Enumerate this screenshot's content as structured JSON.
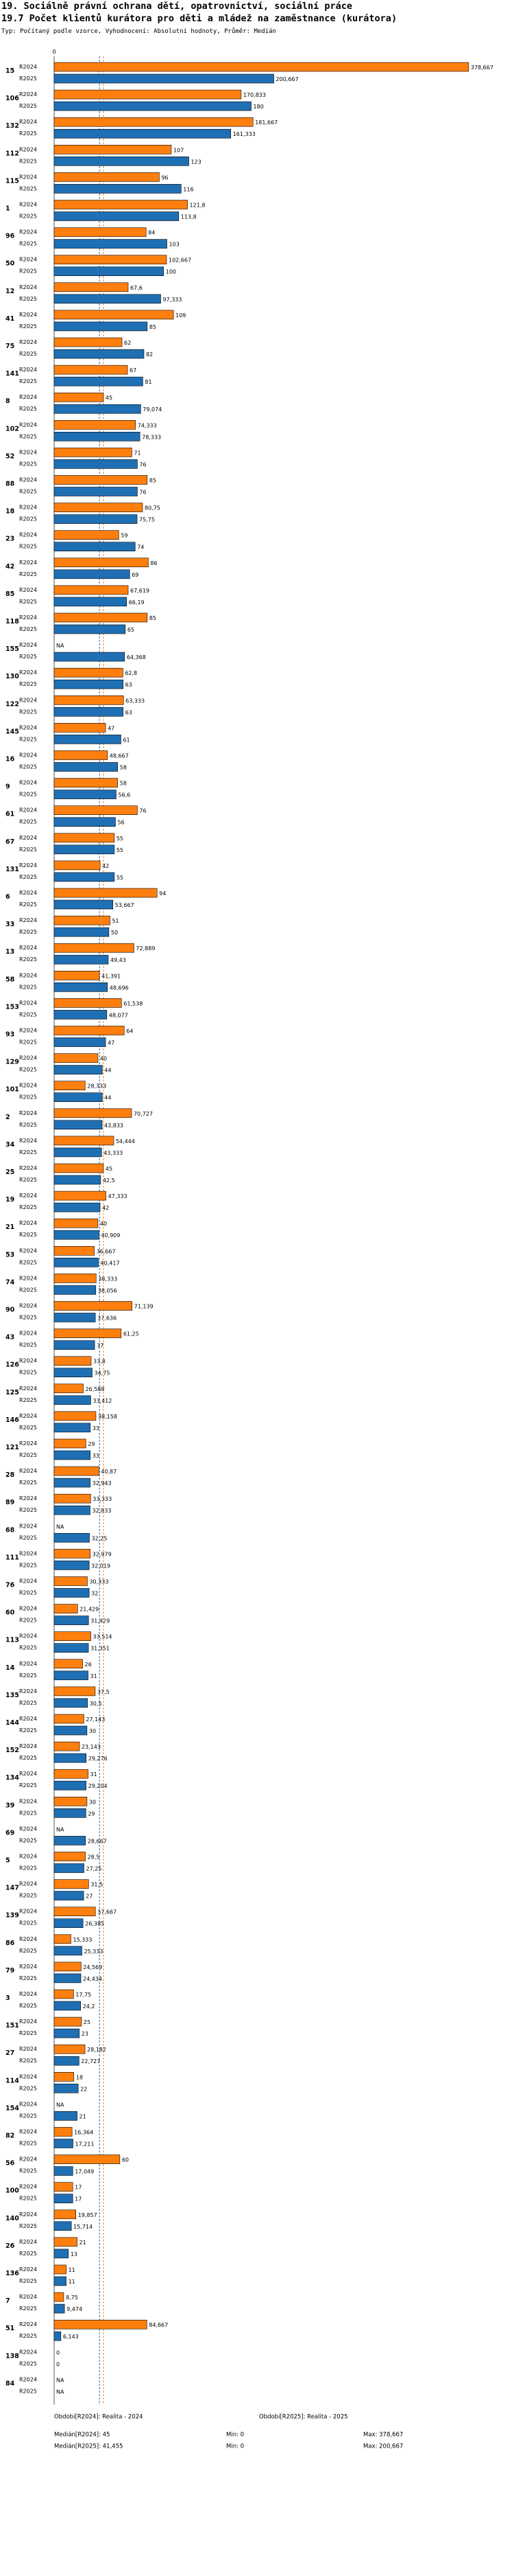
{
  "header": {
    "line1": "19. Sociálně právní ochrana dětí, opatrovnictví, sociální práce",
    "line2": "19.7 Počet klientů kurátora pro děti a mládež na zaměstnance (kurátora)",
    "line3": "Typ: Počítaný podle vzorce, Vyhodnocení: Absolutní hodnoty, Průměr: Medián"
  },
  "colors": {
    "s2024": "#ff7f0e",
    "s2025": "#1f6fb4",
    "median2024": "#ff7f0e",
    "median2025": "#1f6fb4"
  },
  "chart_data": {
    "type": "bar",
    "orientation": "horizontal",
    "title": "19.7 Počet klientů kurátora pro děti a mládež na zaměstnance (kurátora)",
    "series_names": [
      "R2024",
      "R2025"
    ],
    "xlim": [
      0,
      380
    ],
    "x_tick_labels": [
      "0"
    ],
    "rows": [
      {
        "id": "15",
        "v24": 378.667,
        "l24": "378,667",
        "v25": 200.667,
        "l25": "200,667"
      },
      {
        "id": "106",
        "v24": 170.833,
        "l24": "170,833",
        "v25": 180,
        "l25": "180"
      },
      {
        "id": "132",
        "v24": 181.667,
        "l24": "181,667",
        "v25": 161.333,
        "l25": "161,333"
      },
      {
        "id": "112",
        "v24": 107,
        "l24": "107",
        "v25": 123,
        "l25": "123"
      },
      {
        "id": "115",
        "v24": 96,
        "l24": "96",
        "v25": 116,
        "l25": "116"
      },
      {
        "id": "1",
        "v24": 121.8,
        "l24": "121,8",
        "v25": 113.8,
        "l25": "113,8"
      },
      {
        "id": "96",
        "v24": 84,
        "l24": "84",
        "v25": 103,
        "l25": "103"
      },
      {
        "id": "50",
        "v24": 102.667,
        "l24": "102,667",
        "v25": 100,
        "l25": "100"
      },
      {
        "id": "12",
        "v24": 67.6,
        "l24": "67,6",
        "v25": 97.333,
        "l25": "97,333"
      },
      {
        "id": "41",
        "v24": 109,
        "l24": "109",
        "v25": 85,
        "l25": "85"
      },
      {
        "id": "75",
        "v24": 62,
        "l24": "62",
        "v25": 82,
        "l25": "82"
      },
      {
        "id": "141",
        "v24": 67,
        "l24": "67",
        "v25": 81,
        "l25": "81"
      },
      {
        "id": "8",
        "v24": 45,
        "l24": "45",
        "v25": 79.074,
        "l25": "79,074"
      },
      {
        "id": "102",
        "v24": 74.333,
        "l24": "74,333",
        "v25": 78.333,
        "l25": "78,333"
      },
      {
        "id": "52",
        "v24": 71,
        "l24": "71",
        "v25": 76,
        "l25": "76"
      },
      {
        "id": "88",
        "v24": 85,
        "l24": "85",
        "v25": 76,
        "l25": "76"
      },
      {
        "id": "18",
        "v24": 80.75,
        "l24": "80,75",
        "v25": 75.75,
        "l25": "75,75"
      },
      {
        "id": "23",
        "v24": 59,
        "l24": "59",
        "v25": 74,
        "l25": "74"
      },
      {
        "id": "42",
        "v24": 86,
        "l24": "86",
        "v25": 69,
        "l25": "69"
      },
      {
        "id": "85",
        "v24": 67.619,
        "l24": "67,619",
        "v25": 66.19,
        "l25": "66,19"
      },
      {
        "id": "118",
        "v24": 85,
        "l24": "85",
        "v25": 65,
        "l25": "65"
      },
      {
        "id": "155",
        "v24": null,
        "l24": "NA",
        "v25": 64.368,
        "l25": "64,368"
      },
      {
        "id": "130",
        "v24": 62.8,
        "l24": "62,8",
        "v25": 63,
        "l25": "63"
      },
      {
        "id": "122",
        "v24": 63.333,
        "l24": "63,333",
        "v25": 63,
        "l25": "63"
      },
      {
        "id": "145",
        "v24": 47,
        "l24": "47",
        "v25": 61,
        "l25": "61"
      },
      {
        "id": "16",
        "v24": 48.667,
        "l24": "48,667",
        "v25": 58,
        "l25": "58"
      },
      {
        "id": "9",
        "v24": 58,
        "l24": "58",
        "v25": 56.6,
        "l25": "56,6"
      },
      {
        "id": "61",
        "v24": 76,
        "l24": "76",
        "v25": 56,
        "l25": "56"
      },
      {
        "id": "67",
        "v24": 55,
        "l24": "55",
        "v25": 55,
        "l25": "55"
      },
      {
        "id": "131",
        "v24": 42,
        "l24": "42",
        "v25": 55,
        "l25": "55"
      },
      {
        "id": "6",
        "v24": 94,
        "l24": "94",
        "v25": 53.667,
        "l25": "53,667"
      },
      {
        "id": "33",
        "v24": 51,
        "l24": "51",
        "v25": 50,
        "l25": "50"
      },
      {
        "id": "13",
        "v24": 72.889,
        "l24": "72,889",
        "v25": 49.43,
        "l25": "49,43"
      },
      {
        "id": "58",
        "v24": 41.391,
        "l24": "41,391",
        "v25": 48.696,
        "l25": "48,696"
      },
      {
        "id": "153",
        "v24": 61.538,
        "l24": "61,538",
        "v25": 48.077,
        "l25": "48,077"
      },
      {
        "id": "93",
        "v24": 64,
        "l24": "64",
        "v25": 47,
        "l25": "47"
      },
      {
        "id": "129",
        "v24": 40,
        "l24": "40",
        "v25": 44,
        "l25": "44"
      },
      {
        "id": "101",
        "v24": 28.333,
        "l24": "28,333",
        "v25": 44,
        "l25": "44"
      },
      {
        "id": "2",
        "v24": 70.727,
        "l24": "70,727",
        "v25": 43.833,
        "l25": "43,833"
      },
      {
        "id": "34",
        "v24": 54.444,
        "l24": "54,444",
        "v25": 43.333,
        "l25": "43,333"
      },
      {
        "id": "25",
        "v24": 45,
        "l24": "45",
        "v25": 42.5,
        "l25": "42,5"
      },
      {
        "id": "19",
        "v24": 47.333,
        "l24": "47,333",
        "v25": 42,
        "l25": "42"
      },
      {
        "id": "21",
        "v24": 40,
        "l24": "40",
        "v25": 40.909,
        "l25": "40,909"
      },
      {
        "id": "53",
        "v24": 36.667,
        "l24": "36,667",
        "v25": 40.417,
        "l25": "40,417"
      },
      {
        "id": "74",
        "v24": 38.333,
        "l24": "38,333",
        "v25": 38.056,
        "l25": "38,056"
      },
      {
        "id": "90",
        "v24": 71.139,
        "l24": "71,139",
        "v25": 37.636,
        "l25": "37,636"
      },
      {
        "id": "43",
        "v24": 61.25,
        "l24": "61,25",
        "v25": 37,
        "l25": "37"
      },
      {
        "id": "126",
        "v24": 33.8,
        "l24": "33,8",
        "v25": 34.75,
        "l25": "34,75"
      },
      {
        "id": "125",
        "v24": 26.588,
        "l24": "26,588",
        "v25": 33.412,
        "l25": "33,412"
      },
      {
        "id": "146",
        "v24": 38.158,
        "l24": "38,158",
        "v25": 33,
        "l25": "33"
      },
      {
        "id": "121",
        "v24": 29,
        "l24": "29",
        "v25": 33,
        "l25": "33"
      },
      {
        "id": "28",
        "v24": 40.87,
        "l24": "40,87",
        "v25": 32.943,
        "l25": "32,943"
      },
      {
        "id": "89",
        "v24": 33.333,
        "l24": "33,333",
        "v25": 32.833,
        "l25": "32,833"
      },
      {
        "id": "68",
        "v24": null,
        "l24": "NA",
        "v25": 32.25,
        "l25": "32,25"
      },
      {
        "id": "111",
        "v24": 32.979,
        "l24": "32,979",
        "v25": 32.019,
        "l25": "32,019"
      },
      {
        "id": "76",
        "v24": 30.333,
        "l24": "30,333",
        "v25": 32,
        "l25": "32"
      },
      {
        "id": "60",
        "v24": 21.429,
        "l24": "21,429",
        "v25": 31.429,
        "l25": "31,429"
      },
      {
        "id": "113",
        "v24": 33.514,
        "l24": "33,514",
        "v25": 31.351,
        "l25": "31,351"
      },
      {
        "id": "14",
        "v24": 26,
        "l24": "26",
        "v25": 31,
        "l25": "31"
      },
      {
        "id": "135",
        "v24": 37.5,
        "l24": "37,5",
        "v25": 30.5,
        "l25": "30,5"
      },
      {
        "id": "144",
        "v24": 27.143,
        "l24": "27,143",
        "v25": 30,
        "l25": "30"
      },
      {
        "id": "152",
        "v24": 23.143,
        "l24": "23,143",
        "v25": 29.276,
        "l25": "29,276"
      },
      {
        "id": "134",
        "v24": 31,
        "l24": "31",
        "v25": 29.204,
        "l25": "29,204"
      },
      {
        "id": "39",
        "v24": 30,
        "l24": "30",
        "v25": 29,
        "l25": "29"
      },
      {
        "id": "69",
        "v24": null,
        "l24": "NA",
        "v25": 28.667,
        "l25": "28,667"
      },
      {
        "id": "5",
        "v24": 28.5,
        "l24": "28,5",
        "v25": 27.25,
        "l25": "27,25"
      },
      {
        "id": "147",
        "v24": 31.5,
        "l24": "31,5",
        "v25": 27,
        "l25": "27"
      },
      {
        "id": "139",
        "v24": 37.667,
        "l24": "37,667",
        "v25": 26.385,
        "l25": "26,385"
      },
      {
        "id": "86",
        "v24": 15.333,
        "l24": "15,333",
        "v25": 25.333,
        "l25": "25,333"
      },
      {
        "id": "79",
        "v24": 24.569,
        "l24": "24,569",
        "v25": 24.434,
        "l25": "24,434"
      },
      {
        "id": "3",
        "v24": 17.75,
        "l24": "17,75",
        "v25": 24.2,
        "l25": "24,2"
      },
      {
        "id": "151",
        "v24": 25,
        "l24": "25",
        "v25": 23,
        "l25": "23"
      },
      {
        "id": "27",
        "v24": 28.182,
        "l24": "28,182",
        "v25": 22.727,
        "l25": "22,727"
      },
      {
        "id": "114",
        "v24": 18,
        "l24": "18",
        "v25": 22,
        "l25": "22"
      },
      {
        "id": "154",
        "v24": null,
        "l24": "NA",
        "v25": 21,
        "l25": "21"
      },
      {
        "id": "82",
        "v24": 16.364,
        "l24": "16,364",
        "v25": 17.211,
        "l25": "17,211"
      },
      {
        "id": "56",
        "v24": 60,
        "l24": "60",
        "v25": 17.049,
        "l25": "17,049"
      },
      {
        "id": "100",
        "v24": 17,
        "l24": "17",
        "v25": 17,
        "l25": "17"
      },
      {
        "id": "140",
        "v24": 19.857,
        "l24": "19,857",
        "v25": 15.714,
        "l25": "15,714"
      },
      {
        "id": "26",
        "v24": 21,
        "l24": "21",
        "v25": 13,
        "l25": "13"
      },
      {
        "id": "136",
        "v24": 11,
        "l24": "11",
        "v25": 11,
        "l25": "11"
      },
      {
        "id": "7",
        "v24": 8.75,
        "l24": "8,75",
        "v25": 9.474,
        "l25": "9,474"
      },
      {
        "id": "51",
        "v24": 84.667,
        "l24": "84,667",
        "v25": 6.143,
        "l25": "6,143"
      },
      {
        "id": "138",
        "v24": 0,
        "l24": "0",
        "v25": 0,
        "l25": "0"
      },
      {
        "id": "84",
        "v24": null,
        "l24": "NA",
        "v25": null,
        "l25": "NA"
      }
    ],
    "median_2024": 45,
    "median_2025": 41.455,
    "footer": {
      "legend_2024": "Obdobi[R2024]: Realita - 2024",
      "legend_2025": "Obdobi[R2025]: Realita - 2025",
      "median_2024": "Medián[R2024]: 45",
      "median_2025": "Medián[R2025]: 41,455",
      "min_2024": "Min: 0",
      "min_2025": "Min: 0",
      "max_2024": "Max: 378,667",
      "max_2025": "Max: 200,667"
    }
  }
}
